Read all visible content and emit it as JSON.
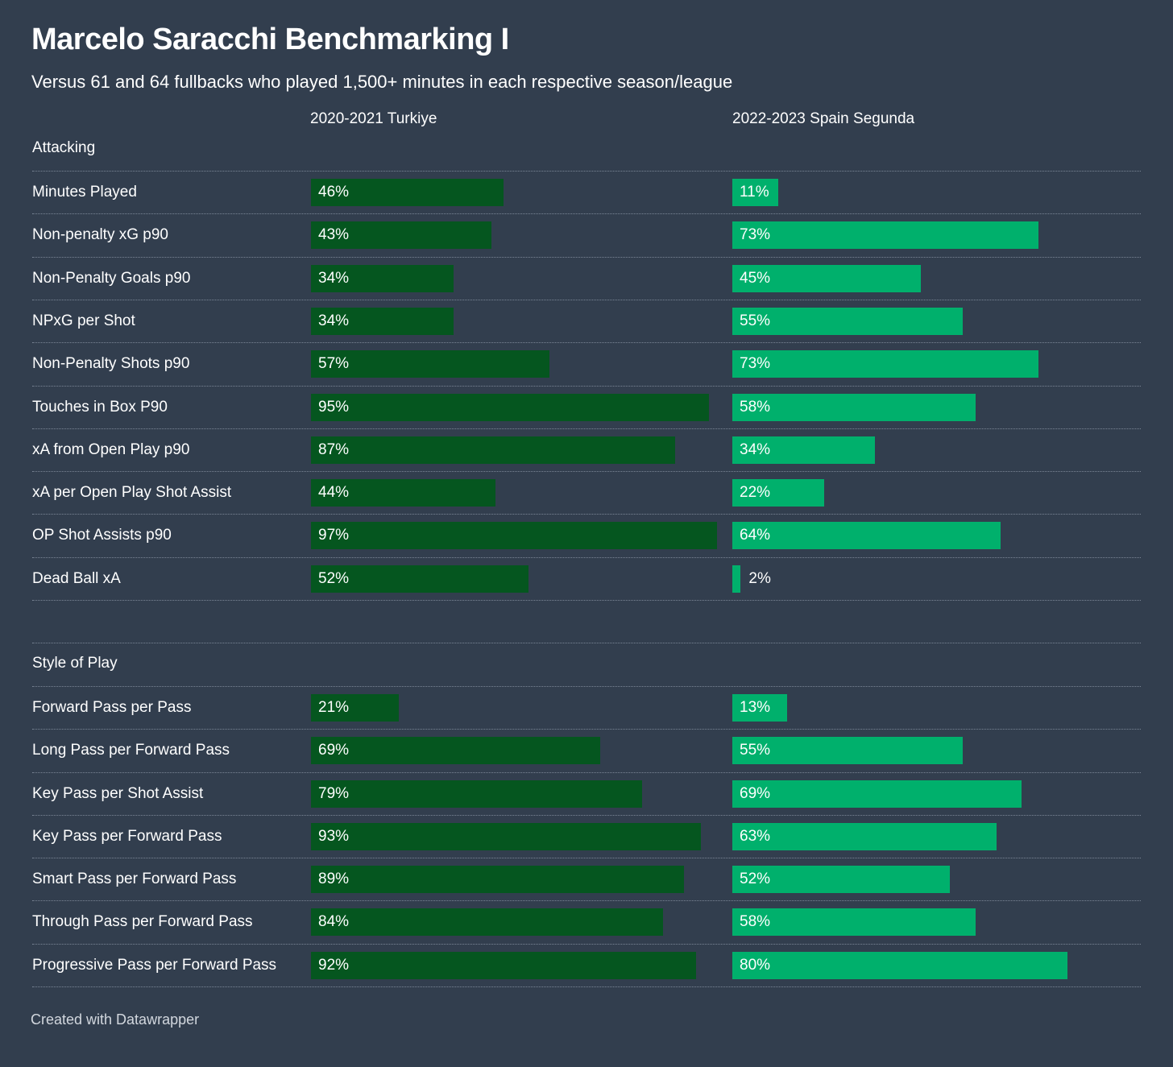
{
  "chart_data": {
    "type": "bar",
    "title": "Marcelo Saracchi Benchmarking I",
    "subtitle": "Versus 61 and 64 fullbacks who played 1,500+ minutes in each respective season/league",
    "columns": [
      "2020-2021 Turkiye",
      "2022-2023 Spain Segunda"
    ],
    "value_suffix": "%",
    "xlim": [
      0,
      100
    ],
    "colors": {
      "2020-2021 Turkiye": "#05561f",
      "2022-2023 Spain Segunda": "#00b06c"
    },
    "sections": [
      {
        "name": "Attacking",
        "rows": [
          {
            "metric": "Minutes Played",
            "values": [
              46,
              11
            ]
          },
          {
            "metric": "Non-penalty xG p90",
            "values": [
              43,
              73
            ]
          },
          {
            "metric": "Non-Penalty Goals p90",
            "values": [
              34,
              45
            ]
          },
          {
            "metric": "NPxG per Shot",
            "values": [
              34,
              55
            ]
          },
          {
            "metric": "Non-Penalty Shots p90",
            "values": [
              57,
              73
            ]
          },
          {
            "metric": "Touches in Box P90",
            "values": [
              95,
              58
            ]
          },
          {
            "metric": "xA from Open Play p90",
            "values": [
              87,
              34
            ]
          },
          {
            "metric": "xA per Open Play Shot Assist",
            "values": [
              44,
              22
            ]
          },
          {
            "metric": "OP Shot Assists p90",
            "values": [
              97,
              64
            ]
          },
          {
            "metric": "Dead Ball xA",
            "values": [
              52,
              2
            ]
          }
        ]
      },
      {
        "name": "Style of Play",
        "rows": [
          {
            "metric": "Forward Pass per Pass",
            "values": [
              21,
              13
            ]
          },
          {
            "metric": "Long Pass per Forward Pass",
            "values": [
              69,
              55
            ]
          },
          {
            "metric": "Key Pass per Shot Assist",
            "values": [
              79,
              69
            ]
          },
          {
            "metric": "Key Pass per Forward Pass",
            "values": [
              93,
              63
            ]
          },
          {
            "metric": "Smart Pass per Forward Pass",
            "values": [
              89,
              52
            ]
          },
          {
            "metric": "Through Pass per Forward Pass",
            "values": [
              84,
              58
            ]
          },
          {
            "metric": "Progressive Pass per Forward Pass",
            "values": [
              92,
              80
            ]
          }
        ]
      }
    ]
  },
  "footer": "Created with Datawrapper"
}
